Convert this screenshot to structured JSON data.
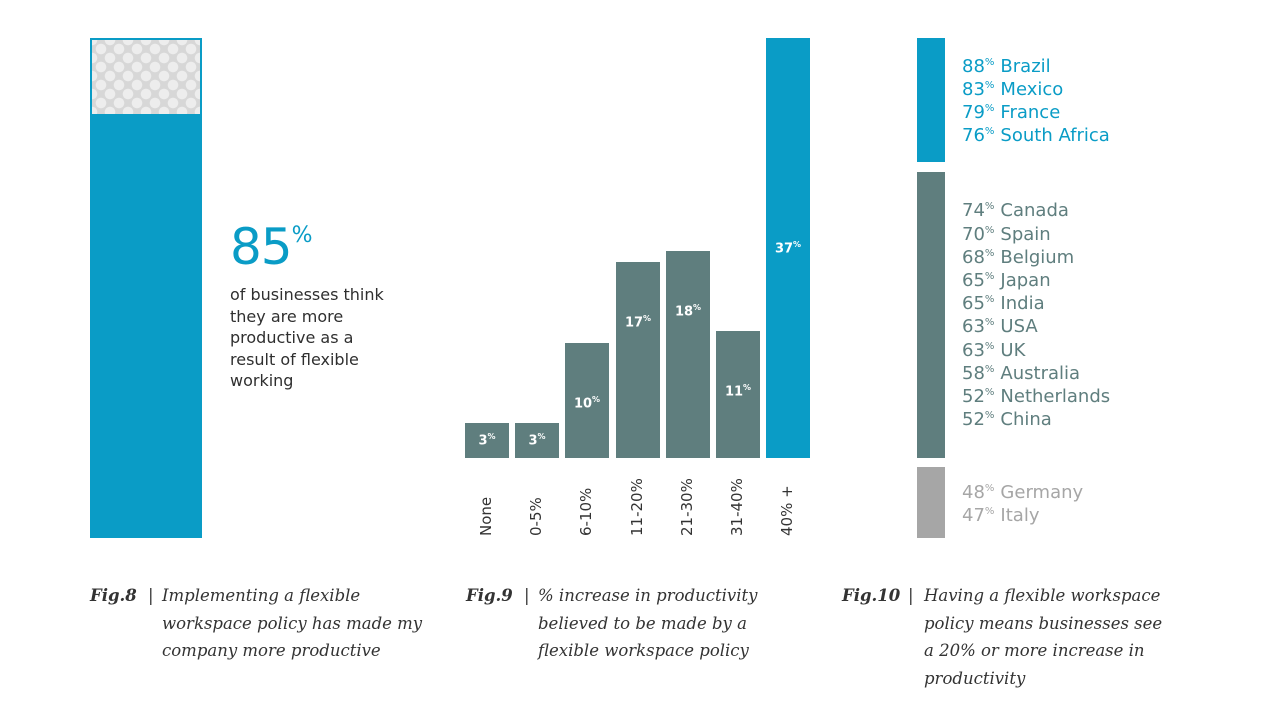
{
  "fig8": {
    "big_value": "85",
    "big_unit": "%",
    "text": "of businesses think they are more productive as a result of flexible working",
    "value": 85,
    "caption_num": "Fig.8",
    "caption_sep": "|",
    "caption": "Implementing a flexible workspace policy has made my company more productive"
  },
  "fig9": {
    "caption_num": "Fig.9",
    "caption_sep": "|",
    "caption": "% increase in productivity believed to be made by a flexible workspace policy"
  },
  "fig10": {
    "caption_num": "Fig.10",
    "caption_sep": "|",
    "caption": "Having a flexible workspace policy means businesses see a 20% or more increase in productivity"
  },
  "colors": {
    "blue": "#0a9cc6",
    "slate": "#5f7e7e",
    "gray": "#a6a6a6"
  },
  "chart_data": [
    {
      "type": "bar",
      "categories": [
        ""
      ],
      "values": [
        85
      ],
      "ylim": [
        0,
        100
      ],
      "annotation": "85% of businesses think they are more productive as a result of flexible working"
    },
    {
      "type": "bar",
      "categories": [
        "None",
        "0-5%",
        "6-10%",
        "11-20%",
        "21-30%",
        "31-40%",
        "40% +"
      ],
      "values": [
        3,
        3,
        10,
        17,
        18,
        11,
        37
      ],
      "data_labels": [
        "3",
        "3",
        "10",
        "17",
        "18",
        "11",
        "37"
      ],
      "unit": "%",
      "highlight_index": 6
    },
    {
      "type": "table",
      "groups": [
        {
          "color": "#0a9cc6",
          "rows": [
            {
              "value": 88,
              "label": "88",
              "country": "Brazil"
            },
            {
              "value": 83,
              "label": "83",
              "country": "Mexico"
            },
            {
              "value": 79,
              "label": "79",
              "country": "France"
            },
            {
              "value": 76,
              "label": "76",
              "country": "South Africa"
            }
          ]
        },
        {
          "color": "#5f7e7e",
          "rows": [
            {
              "value": 74,
              "label": "74",
              "country": "Canada"
            },
            {
              "value": 70,
              "label": "70",
              "country": "Spain"
            },
            {
              "value": 68,
              "label": "68",
              "country": "Belgium"
            },
            {
              "value": 65,
              "label": "65",
              "country": "Japan"
            },
            {
              "value": 65,
              "label": "65",
              "country": "India"
            },
            {
              "value": 63,
              "label": "63",
              "country": "USA"
            },
            {
              "value": 63,
              "label": "63",
              "country": "UK"
            },
            {
              "value": 58,
              "label": "58",
              "country": "Australia"
            },
            {
              "value": 52,
              "label": "52",
              "country": "Netherlands"
            },
            {
              "value": 52,
              "label": "52",
              "country": "China"
            }
          ]
        },
        {
          "color": "#a6a6a6",
          "rows": [
            {
              "value": 48,
              "label": "48",
              "country": "Germany"
            },
            {
              "value": 47,
              "label": "47",
              "country": "Italy"
            }
          ]
        }
      ],
      "unit": "%"
    }
  ]
}
